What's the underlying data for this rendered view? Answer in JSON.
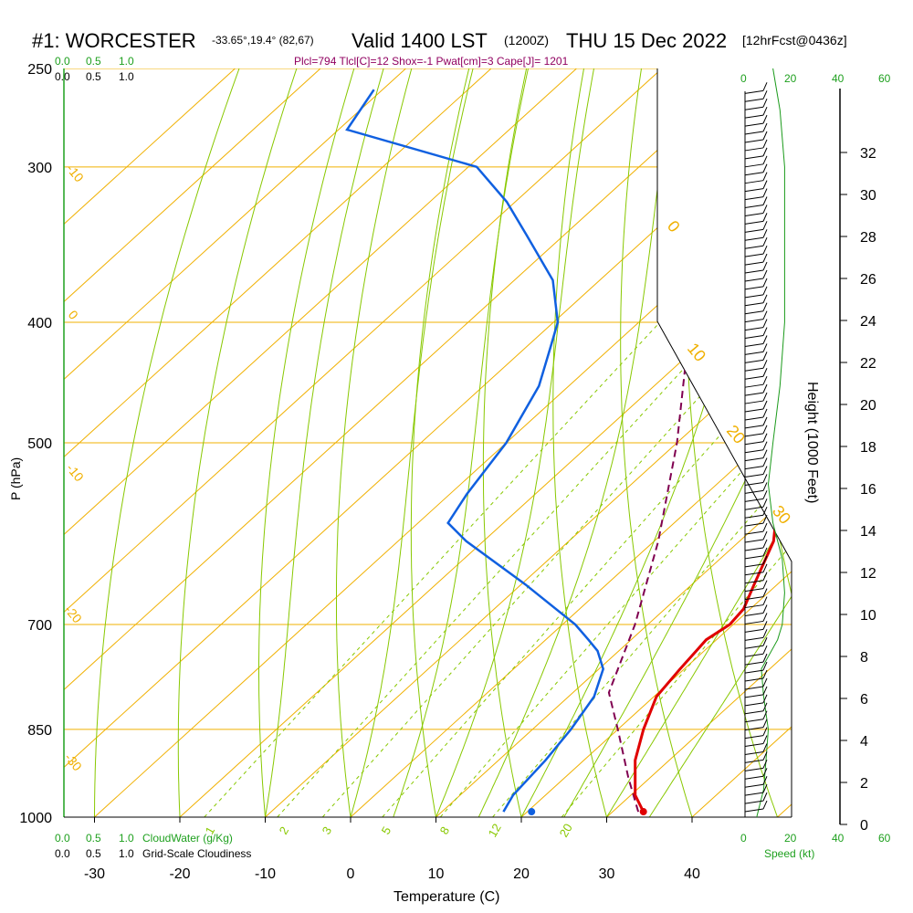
{
  "header": {
    "title": "#1: WORCESTER",
    "coords": "-33.65°,19.4° (82,67)",
    "valid": "Valid 1400 LST",
    "valid_z": "(1200Z)",
    "date": "THU 15 Dec 2022",
    "fcst": "[12hrFcst@0436z]",
    "params": "Plcl=794 Tlcl[C]=12 Shox=-1 Pwat[cm]=3 Cape[J]= 1201"
  },
  "left_scales": {
    "cloudwater_ticks": [
      "0.0",
      "0.5",
      "1.0"
    ],
    "cloudiness_ticks": [
      "0.0",
      "0.5",
      "1.0"
    ],
    "cloudwater_label": "CloudWater (g/Kg)",
    "cloudiness_label": "Grid-Scale Cloudiness"
  },
  "speed_scale": {
    "ticks": [
      "0",
      "20",
      "40",
      "60"
    ],
    "label": "Speed (kt)"
  },
  "colors": {
    "isobar": "#f0b000",
    "isotherm": "#f0b000",
    "dry_adiabat": "#88c800",
    "moist_adiabat": "#88c800",
    "mixing_ratio": "#88c800",
    "temperature": "#e00000",
    "dewpoint": "#1060e0",
    "parcel": "#800050",
    "speed": "#1a9a1a",
    "params": "#900060",
    "green_label": "#1ea01e"
  },
  "chart_data": {
    "type": "skew-t log-p sounding",
    "xlabel": "Temperature (C)",
    "ylabel": "P (hPa)",
    "right_label": "Height (1000 Feet)",
    "x_ticks": [
      -30,
      -20,
      -10,
      0,
      10,
      20,
      30,
      40
    ],
    "pressure_ticks": [
      250,
      300,
      400,
      500,
      700,
      850,
      1000
    ],
    "height_ticks": [
      0,
      2,
      4,
      6,
      8,
      10,
      12,
      14,
      16,
      18,
      20,
      22,
      24,
      26,
      28,
      30,
      32
    ],
    "isotherm_labels": [
      {
        "t": -10,
        "label": "-10"
      },
      {
        "t": 0,
        "label": "0"
      },
      {
        "t": -10,
        "label": "-10"
      },
      {
        "t": -20,
        "label": "-20"
      },
      {
        "t": -30,
        "label": "-30"
      },
      {
        "t": 0,
        "label": "0"
      },
      {
        "t": 10,
        "label": "10"
      },
      {
        "t": 20,
        "label": "20"
      },
      {
        "t": 30,
        "label": "30"
      }
    ],
    "mixing_ratio_labels": [
      "1",
      "2",
      "3",
      "5",
      "8",
      "12",
      "20"
    ],
    "temperature": [
      {
        "p": 990,
        "t": 33.6
      },
      {
        "p": 960,
        "t": 30.5
      },
      {
        "p": 900,
        "t": 26.0
      },
      {
        "p": 850,
        "t": 23.0
      },
      {
        "p": 800,
        "t": 20.3
      },
      {
        "p": 760,
        "t": 19.5
      },
      {
        "p": 720,
        "t": 18.8
      },
      {
        "p": 700,
        "t": 19.6
      },
      {
        "p": 680,
        "t": 19.2
      },
      {
        "p": 650,
        "t": 17.3
      },
      {
        "p": 600,
        "t": 14.0
      },
      {
        "p": 550,
        "t": 8.5
      },
      {
        "p": 500,
        "t": 3.0
      },
      {
        "p": 450,
        "t": -2.5
      },
      {
        "p": 400,
        "t": -8.0
      },
      {
        "p": 350,
        "t": -14.5
      },
      {
        "p": 320,
        "t": -20.5
      },
      {
        "p": 300,
        "t": -24.5
      },
      {
        "p": 280,
        "t": -29.0
      },
      {
        "p": 262,
        "t": -32.5
      }
    ],
    "dewpoint": [
      {
        "p": 990,
        "t": 17.2
      },
      {
        "p": 960,
        "t": 16.2
      },
      {
        "p": 900,
        "t": 15.5
      },
      {
        "p": 850,
        "t": 14.5
      },
      {
        "p": 800,
        "t": 13.0
      },
      {
        "p": 760,
        "t": 10.5
      },
      {
        "p": 735,
        "t": 7.5
      },
      {
        "p": 720,
        "t": 5.0
      },
      {
        "p": 700,
        "t": 1.5
      },
      {
        "p": 650,
        "t": -9.5
      },
      {
        "p": 600,
        "t": -22.0
      },
      {
        "p": 580,
        "t": -26.5
      },
      {
        "p": 550,
        "t": -28.0
      },
      {
        "p": 500,
        "t": -30.0
      },
      {
        "p": 450,
        "t": -33.5
      },
      {
        "p": 420,
        "t": -37.0
      },
      {
        "p": 400,
        "t": -39.5
      },
      {
        "p": 370,
        "t": -45.5
      },
      {
        "p": 340,
        "t": -54.5
      },
      {
        "p": 320,
        "t": -61.0
      },
      {
        "p": 300,
        "t": -69.0
      },
      {
        "p": 280,
        "t": -89.0
      },
      {
        "p": 260,
        "t": -91.0
      }
    ],
    "parcel": [
      {
        "p": 990,
        "t": 33.0
      },
      {
        "p": 930,
        "t": 27.5
      },
      {
        "p": 850,
        "t": 20.0
      },
      {
        "p": 794,
        "t": 14.2
      },
      {
        "p": 700,
        "t": 8.5
      },
      {
        "p": 600,
        "t": 0.5
      },
      {
        "p": 500,
        "t": -10.0
      },
      {
        "p": 400,
        "t": -24.0
      },
      {
        "p": 350,
        "t": -33.0
      },
      {
        "p": 300,
        "t": -45.0
      }
    ],
    "surface_temperature": 33.6,
    "surface_dewpoint": 20.5,
    "wind_speed_profile": [
      {
        "p": 1000,
        "kt": 5
      },
      {
        "p": 950,
        "kt": 8
      },
      {
        "p": 900,
        "kt": 9
      },
      {
        "p": 850,
        "kt": 10
      },
      {
        "p": 800,
        "kt": 8
      },
      {
        "p": 760,
        "kt": 7
      },
      {
        "p": 720,
        "kt": 14
      },
      {
        "p": 700,
        "kt": 16
      },
      {
        "p": 660,
        "kt": 17
      },
      {
        "p": 620,
        "kt": 16
      },
      {
        "p": 580,
        "kt": 12
      },
      {
        "p": 540,
        "kt": 10
      },
      {
        "p": 500,
        "kt": 12
      },
      {
        "p": 450,
        "kt": 15
      },
      {
        "p": 400,
        "kt": 17
      },
      {
        "p": 350,
        "kt": 17
      },
      {
        "p": 300,
        "kt": 17
      },
      {
        "p": 270,
        "kt": 15
      },
      {
        "p": 250,
        "kt": 12
      }
    ]
  }
}
